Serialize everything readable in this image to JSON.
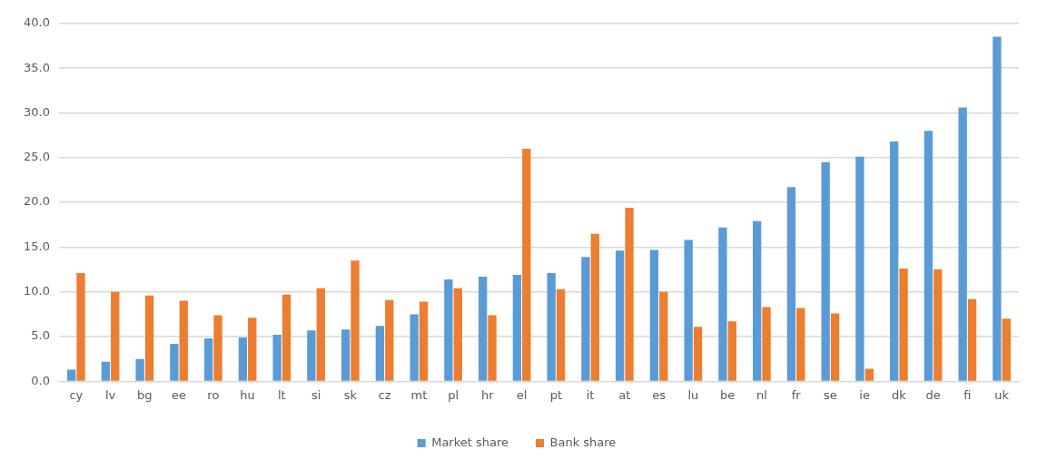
{
  "chart_data": {
    "type": "bar",
    "categories": [
      "cy",
      "lv",
      "bg",
      "ee",
      "ro",
      "hu",
      "lt",
      "si",
      "sk",
      "cz",
      "mt",
      "pl",
      "hr",
      "el",
      "pt",
      "it",
      "at",
      "es",
      "lu",
      "be",
      "nl",
      "fr",
      "se",
      "ie",
      "dk",
      "de",
      "fi",
      "uk"
    ],
    "series": [
      {
        "name": "Market share",
        "color": "#5b9bd5",
        "values": [
          1.3,
          2.2,
          2.5,
          4.2,
          4.8,
          4.9,
          5.2,
          5.7,
          5.8,
          6.2,
          7.5,
          11.4,
          11.7,
          11.9,
          12.1,
          13.9,
          14.6,
          14.7,
          15.8,
          17.2,
          17.9,
          21.7,
          24.5,
          25.1,
          26.8,
          28.0,
          30.6,
          38.5
        ]
      },
      {
        "name": "Bank share",
        "color": "#ed7d31",
        "values": [
          12.1,
          10.0,
          9.6,
          9.0,
          7.4,
          7.1,
          9.7,
          10.4,
          13.5,
          9.1,
          8.9,
          10.4,
          7.4,
          26.0,
          10.3,
          16.5,
          19.4,
          10.0,
          6.1,
          6.7,
          8.3,
          8.2,
          7.6,
          1.4,
          12.6,
          12.5,
          9.2,
          7.0
        ]
      }
    ],
    "ylim": [
      0,
      40
    ],
    "yticks": [
      {
        "value": 0,
        "label": "0.0"
      },
      {
        "value": 5,
        "label": "5.0"
      },
      {
        "value": 10,
        "label": "10.0"
      },
      {
        "value": 15,
        "label": "15.0"
      },
      {
        "value": 20,
        "label": "20.0"
      },
      {
        "value": 25,
        "label": "25.0"
      },
      {
        "value": 30,
        "label": "30.0"
      },
      {
        "value": 35,
        "label": "35.0"
      },
      {
        "value": 40,
        "label": "40.0"
      }
    ],
    "grid": "y",
    "legend": "bottom"
  }
}
